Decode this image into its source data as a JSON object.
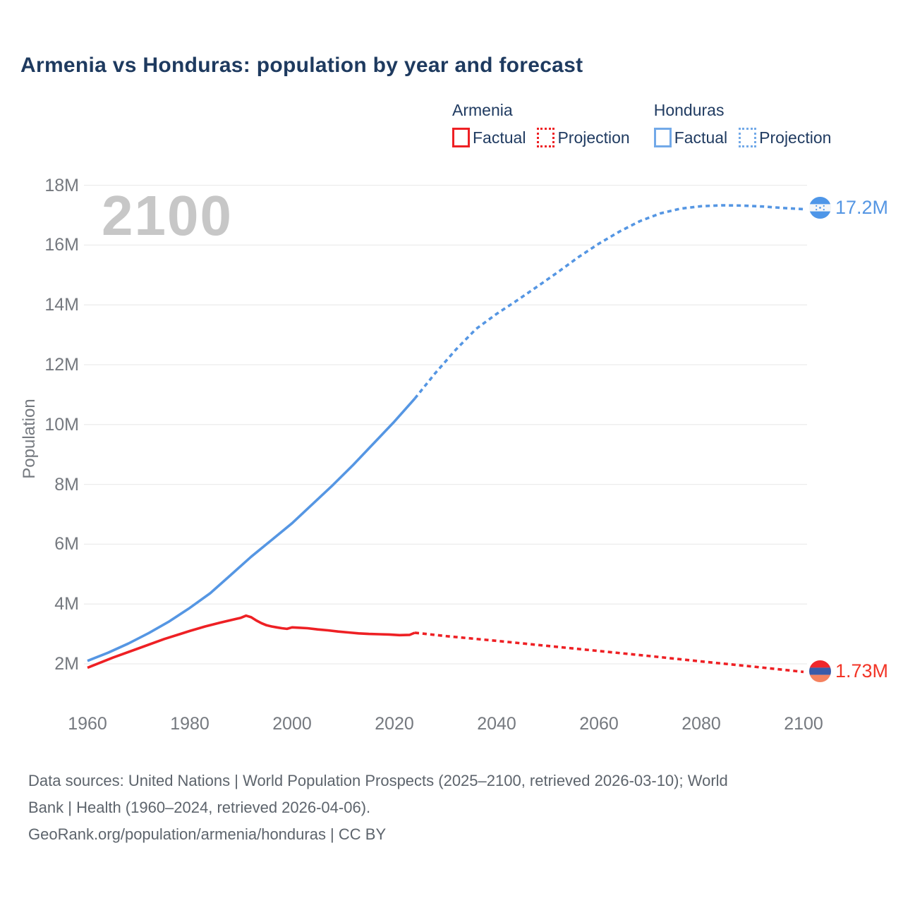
{
  "header": {
    "title": "Armenia vs Honduras: population by year and forecast"
  },
  "legend": {
    "groups": [
      {
        "country": "Armenia",
        "factual_label": "Factual",
        "projection_label": "Projection",
        "color": "#ee2024"
      },
      {
        "country": "Honduras",
        "factual_label": "Factual",
        "projection_label": "Projection",
        "color": "#5596e3"
      }
    ]
  },
  "chart": {
    "watermark": "2100",
    "y_axis_label": "Population"
  },
  "end_labels": {
    "honduras": {
      "flag": "honduras-flag",
      "value": "17.2M"
    },
    "armenia": {
      "flag": "armenia-flag",
      "value": "1.73M"
    }
  },
  "footer": {
    "sources_line1": "Data sources: United Nations | World Population Prospects (2025–2100, retrieved 2026-03-10); World",
    "sources_line2": "Bank | Health (1960–2024, retrieved 2026-04-06).",
    "attribution": "GeoRank.org/population/armenia/honduras | CC BY"
  },
  "chart_data": {
    "type": "line",
    "title": "Armenia vs Honduras: population by year and forecast",
    "xlabel": "",
    "ylabel": "Population",
    "unit": "millions of people",
    "xlim": [
      1960,
      2100
    ],
    "ylim_millions": [
      1.7,
      18
    ],
    "grid": "horizontal-only",
    "legend_position": "top-right",
    "x_ticks": [
      {
        "label": "1960",
        "value": 1960
      },
      {
        "label": "1980",
        "value": 1980
      },
      {
        "label": "2000",
        "value": 2000
      },
      {
        "label": "2020",
        "value": 2020
      },
      {
        "label": "2040",
        "value": 2040
      },
      {
        "label": "2060",
        "value": 2060
      },
      {
        "label": "2080",
        "value": 2080
      },
      {
        "label": "2100",
        "value": 2100
      }
    ],
    "y_ticks": [
      {
        "label": "2M",
        "value": 2
      },
      {
        "label": "4M",
        "value": 4
      },
      {
        "label": "6M",
        "value": 6
      },
      {
        "label": "8M",
        "value": 8
      },
      {
        "label": "10M",
        "value": 10
      },
      {
        "label": "12M",
        "value": 12
      },
      {
        "label": "14M",
        "value": 14
      },
      {
        "label": "16M",
        "value": 16
      },
      {
        "label": "18M",
        "value": 18
      }
    ],
    "series": [
      {
        "id": "honduras-factual",
        "name": "Honduras Factual",
        "style": "solid",
        "color": "#5596e3",
        "points": [
          [
            1960,
            2.1
          ],
          [
            1964,
            2.37
          ],
          [
            1968,
            2.68
          ],
          [
            1972,
            3.03
          ],
          [
            1976,
            3.42
          ],
          [
            1980,
            3.87
          ],
          [
            1984,
            4.36
          ],
          [
            1988,
            4.97
          ],
          [
            1992,
            5.58
          ],
          [
            1996,
            6.14
          ],
          [
            2000,
            6.7
          ],
          [
            2004,
            7.34
          ],
          [
            2008,
            7.98
          ],
          [
            2012,
            8.66
          ],
          [
            2016,
            9.38
          ],
          [
            2020,
            10.1
          ],
          [
            2024,
            10.87
          ]
        ]
      },
      {
        "id": "honduras-projection",
        "name": "Honduras Projection",
        "style": "dotted",
        "color": "#5596e3",
        "points": [
          [
            2024,
            10.87
          ],
          [
            2028,
            11.72
          ],
          [
            2032,
            12.5
          ],
          [
            2036,
            13.2
          ],
          [
            2040,
            13.7
          ],
          [
            2044,
            14.15
          ],
          [
            2048,
            14.62
          ],
          [
            2052,
            15.1
          ],
          [
            2056,
            15.6
          ],
          [
            2060,
            16.05
          ],
          [
            2064,
            16.45
          ],
          [
            2068,
            16.8
          ],
          [
            2072,
            17.06
          ],
          [
            2076,
            17.22
          ],
          [
            2080,
            17.3
          ],
          [
            2084,
            17.33
          ],
          [
            2088,
            17.32
          ],
          [
            2092,
            17.29
          ],
          [
            2096,
            17.24
          ],
          [
            2100,
            17.2
          ]
        ]
      },
      {
        "id": "armenia-factual",
        "name": "Armenia Factual",
        "style": "solid",
        "color": "#ee2024",
        "points": [
          [
            1960,
            1.87
          ],
          [
            1965,
            2.21
          ],
          [
            1970,
            2.52
          ],
          [
            1975,
            2.83
          ],
          [
            1978,
            2.99
          ],
          [
            1980,
            3.1
          ],
          [
            1983,
            3.25
          ],
          [
            1986,
            3.38
          ],
          [
            1989,
            3.5
          ],
          [
            1990,
            3.54
          ],
          [
            1991,
            3.61
          ],
          [
            1992,
            3.56
          ],
          [
            1993,
            3.45
          ],
          [
            1994,
            3.36
          ],
          [
            1995,
            3.29
          ],
          [
            1996,
            3.25
          ],
          [
            1997,
            3.22
          ],
          [
            1998,
            3.19
          ],
          [
            1999,
            3.17
          ],
          [
            2000,
            3.22
          ],
          [
            2001,
            3.21
          ],
          [
            2003,
            3.19
          ],
          [
            2005,
            3.15
          ],
          [
            2007,
            3.12
          ],
          [
            2009,
            3.08
          ],
          [
            2011,
            3.05
          ],
          [
            2013,
            3.02
          ],
          [
            2015,
            3.0
          ],
          [
            2017,
            2.99
          ],
          [
            2019,
            2.98
          ],
          [
            2021,
            2.96
          ],
          [
            2023,
            2.97
          ],
          [
            2024,
            3.04
          ]
        ]
      },
      {
        "id": "armenia-projection",
        "name": "Armenia Projection",
        "style": "dotted",
        "color": "#ee2024",
        "points": [
          [
            2024,
            3.04
          ],
          [
            2030,
            2.93
          ],
          [
            2040,
            2.77
          ],
          [
            2050,
            2.6
          ],
          [
            2060,
            2.43
          ],
          [
            2070,
            2.26
          ],
          [
            2080,
            2.08
          ],
          [
            2090,
            1.91
          ],
          [
            2100,
            1.73
          ]
        ]
      }
    ],
    "end_labels": [
      {
        "series": "Honduras",
        "value": "17.2M",
        "value_millions": 17.2,
        "year": 2100
      },
      {
        "series": "Armenia",
        "value": "1.73M",
        "value_millions": 1.73,
        "year": 2100
      }
    ],
    "colors": {
      "armenia_red": "#ee2024",
      "honduras_blue": "#5596e3",
      "gridline": "#ececec",
      "axis_text": "#75797f",
      "title_navy": "#1e3a5f",
      "watermark_gray": "#c7c7c7"
    }
  }
}
